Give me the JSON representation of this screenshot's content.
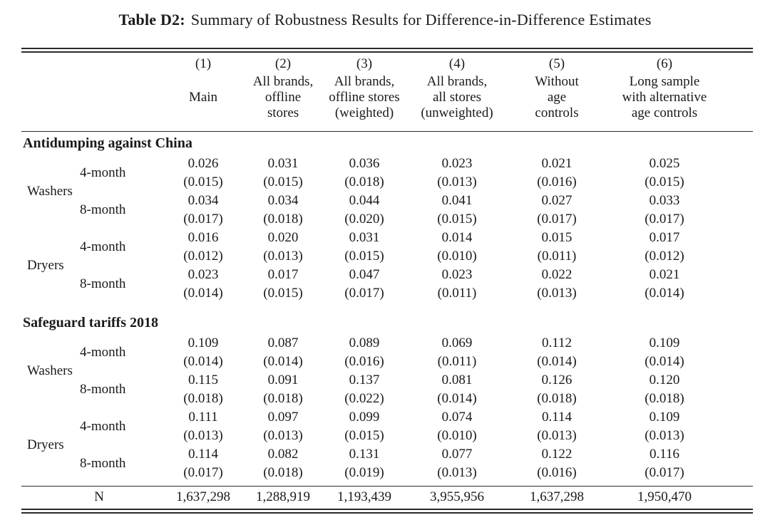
{
  "colors": {
    "background": "#ffffff",
    "text": "#1a1a1a",
    "rule": "#2a2a2a"
  },
  "table": {
    "title_label": "Table D2:",
    "title_text": "Summary of Robustness Results for Difference-in-Difference Estimates",
    "columns": [
      {
        "number": "(1)",
        "label_lines": [
          "Main"
        ]
      },
      {
        "number": "(2)",
        "label_lines": [
          "All brands,",
          "offline",
          "stores"
        ]
      },
      {
        "number": "(3)",
        "label_lines": [
          "All brands,",
          "offline stores",
          "(weighted)"
        ]
      },
      {
        "number": "(4)",
        "label_lines": [
          "All brands,",
          "all stores",
          "(unweighted)"
        ]
      },
      {
        "number": "(5)",
        "label_lines": [
          "Without",
          "age",
          "controls"
        ]
      },
      {
        "number": "(6)",
        "label_lines": [
          "Long sample",
          "with alternative",
          "age controls"
        ]
      }
    ],
    "sections": [
      {
        "title": "Antidumping against China",
        "groups": [
          {
            "product": "Washers",
            "rows": [
              {
                "horizon": "4-month",
                "coefs": [
                  "0.026",
                  "0.031",
                  "0.036",
                  "0.023",
                  "0.021",
                  "0.025"
                ],
                "ses": [
                  "(0.015)",
                  "(0.015)",
                  "(0.018)",
                  "(0.013)",
                  "(0.016)",
                  "(0.015)"
                ]
              },
              {
                "horizon": "8-month",
                "coefs": [
                  "0.034",
                  "0.034",
                  "0.044",
                  "0.041",
                  "0.027",
                  "0.033"
                ],
                "ses": [
                  "(0.017)",
                  "(0.018)",
                  "(0.020)",
                  "(0.015)",
                  "(0.017)",
                  "(0.017)"
                ]
              }
            ]
          },
          {
            "product": "Dryers",
            "rows": [
              {
                "horizon": "4-month",
                "coefs": [
                  "0.016",
                  "0.020",
                  "0.031",
                  "0.014",
                  "0.015",
                  "0.017"
                ],
                "ses": [
                  "(0.012)",
                  "(0.013)",
                  "(0.015)",
                  "(0.010)",
                  "(0.011)",
                  "(0.012)"
                ]
              },
              {
                "horizon": "8-month",
                "coefs": [
                  "0.023",
                  "0.017",
                  "0.047",
                  "0.023",
                  "0.022",
                  "0.021"
                ],
                "ses": [
                  "(0.014)",
                  "(0.015)",
                  "(0.017)",
                  "(0.011)",
                  "(0.013)",
                  "(0.014)"
                ]
              }
            ]
          }
        ]
      },
      {
        "title": "Safeguard tariffs 2018",
        "groups": [
          {
            "product": "Washers",
            "rows": [
              {
                "horizon": "4-month",
                "coefs": [
                  "0.109",
                  "0.087",
                  "0.089",
                  "0.069",
                  "0.112",
                  "0.109"
                ],
                "ses": [
                  "(0.014)",
                  "(0.014)",
                  "(0.016)",
                  "(0.011)",
                  "(0.014)",
                  "(0.014)"
                ]
              },
              {
                "horizon": "8-month",
                "coefs": [
                  "0.115",
                  "0.091",
                  "0.137",
                  "0.081",
                  "0.126",
                  "0.120"
                ],
                "ses": [
                  "(0.018)",
                  "(0.018)",
                  "(0.022)",
                  "(0.014)",
                  "(0.018)",
                  "(0.018)"
                ]
              }
            ]
          },
          {
            "product": "Dryers",
            "rows": [
              {
                "horizon": "4-month",
                "coefs": [
                  "0.111",
                  "0.097",
                  "0.099",
                  "0.074",
                  "0.114",
                  "0.109"
                ],
                "ses": [
                  "(0.013)",
                  "(0.013)",
                  "(0.015)",
                  "(0.010)",
                  "(0.013)",
                  "(0.013)"
                ]
              },
              {
                "horizon": "8-month",
                "coefs": [
                  "0.114",
                  "0.082",
                  "0.131",
                  "0.077",
                  "0.122",
                  "0.116"
                ],
                "ses": [
                  "(0.017)",
                  "(0.018)",
                  "(0.019)",
                  "(0.013)",
                  "(0.016)",
                  "(0.017)"
                ]
              }
            ]
          }
        ]
      }
    ],
    "footer": {
      "label": "N",
      "values": [
        "1,637,298",
        "1,288,919",
        "1,193,439",
        "3,955,956",
        "1,637,298",
        "1,950,470"
      ]
    }
  }
}
